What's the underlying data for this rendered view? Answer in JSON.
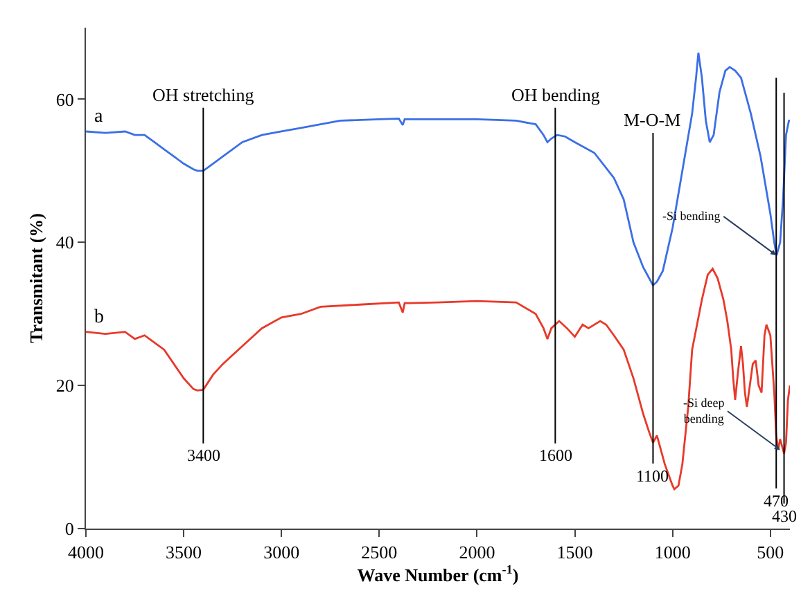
{
  "chart_data": {
    "type": "line",
    "xlabel": "Wave Number (cm$^{-1}$)",
    "ylabel": "Transmitant (%)",
    "xlim": [
      4000,
      400
    ],
    "xticks": [
      4000,
      3500,
      3000,
      2500,
      2000,
      1500,
      1000,
      500
    ],
    "ylim": [
      0,
      70
    ],
    "yticks": [
      0,
      20,
      40,
      60
    ],
    "legend": false,
    "marker": "none",
    "line_style": "solid",
    "series": [
      {
        "name": "a",
        "color": "#3b6fe6",
        "x": [
          4000,
          3900,
          3800,
          3750,
          3700,
          3650,
          3600,
          3550,
          3500,
          3450,
          3430,
          3400,
          3350,
          3300,
          3200,
          3100,
          3000,
          2900,
          2800,
          2700,
          2500,
          2400,
          2380,
          2370,
          2350,
          2200,
          2000,
          1800,
          1700,
          1660,
          1640,
          1620,
          1590,
          1550,
          1500,
          1400,
          1300,
          1250,
          1200,
          1150,
          1120,
          1100,
          1080,
          1050,
          1000,
          950,
          900,
          880,
          868,
          850,
          830,
          810,
          790,
          760,
          730,
          708,
          680,
          650,
          620,
          600,
          550,
          500,
          480,
          468,
          450,
          435,
          420,
          405,
          400
        ],
        "values": [
          55.5,
          55.3,
          55.5,
          55,
          55,
          54,
          53,
          52,
          51,
          50.2,
          50,
          50,
          51,
          52,
          54,
          55,
          55.5,
          56,
          56.5,
          57,
          57.2,
          57.3,
          56.4,
          57.2,
          57.2,
          57.2,
          57.2,
          57,
          56.5,
          55,
          54,
          54.5,
          55,
          54.8,
          54,
          52.5,
          49,
          46,
          40,
          36.5,
          35,
          34,
          34.5,
          36,
          42,
          50,
          58,
          63,
          66.5,
          63,
          57,
          54,
          55,
          61,
          64,
          64.5,
          64,
          63,
          60,
          58,
          52,
          44,
          40,
          38.2,
          40,
          46,
          55,
          57,
          57
        ]
      },
      {
        "name": "b",
        "color": "#e8392a",
        "x": [
          4000,
          3900,
          3800,
          3750,
          3700,
          3650,
          3600,
          3550,
          3500,
          3450,
          3430,
          3400,
          3350,
          3300,
          3200,
          3100,
          3000,
          2900,
          2800,
          2600,
          2400,
          2380,
          2370,
          2350,
          2200,
          2000,
          1800,
          1700,
          1660,
          1640,
          1620,
          1580,
          1540,
          1500,
          1460,
          1430,
          1370,
          1340,
          1300,
          1250,
          1200,
          1150,
          1120,
          1100,
          1080,
          1060,
          1040,
          1000,
          991,
          970,
          950,
          920,
          900,
          850,
          820,
          795,
          770,
          740,
          720,
          700,
          690,
          680,
          665,
          650,
          640,
          630,
          620,
          600,
          590,
          575,
          560,
          545,
          530,
          520,
          500,
          480,
          470,
          460,
          450,
          440,
          430,
          420,
          410,
          400
        ],
        "values": [
          27.5,
          27.2,
          27.5,
          26.5,
          27,
          26,
          25,
          23,
          21,
          19.5,
          19.3,
          19.4,
          21.5,
          23,
          25.5,
          28,
          29.5,
          30,
          31,
          31.3,
          31.6,
          30.2,
          31.5,
          31.5,
          31.6,
          31.8,
          31.6,
          30,
          28,
          26.5,
          28,
          29,
          28,
          26.8,
          28.5,
          28,
          29,
          28.5,
          27,
          25,
          21,
          16,
          13.5,
          12,
          13,
          11,
          9,
          6,
          5.5,
          6,
          9,
          17,
          25,
          32,
          35.5,
          36.3,
          35,
          32,
          29,
          25,
          21,
          18,
          22,
          25.5,
          23,
          19,
          17,
          21,
          23,
          23.5,
          20,
          19,
          27,
          28.5,
          27,
          19,
          13,
          11,
          12.5,
          11.5,
          10.5,
          12,
          18,
          20
        ]
      }
    ],
    "annotations": [
      "OH stretching",
      "OH bending",
      "M-O-M",
      {
        "text": "-Si bending",
        "x": 470,
        "y": 38.2
      },
      {
        "text": "-Si deep bending",
        "x": 450,
        "y": 11
      }
    ],
    "ref_lines": [
      {
        "axis": "x",
        "value": 3400,
        "label": "3400",
        "color": "#000000"
      },
      {
        "axis": "x",
        "value": 1600,
        "label": "1600",
        "color": "#000000"
      },
      {
        "axis": "x",
        "value": 1100,
        "label": "1100",
        "color": "#000000"
      },
      {
        "axis": "x",
        "value": 470,
        "label": "470",
        "color": "#000000"
      },
      {
        "axis": "x",
        "value": 430,
        "label": "430",
        "color": "#000000"
      }
    ]
  }
}
